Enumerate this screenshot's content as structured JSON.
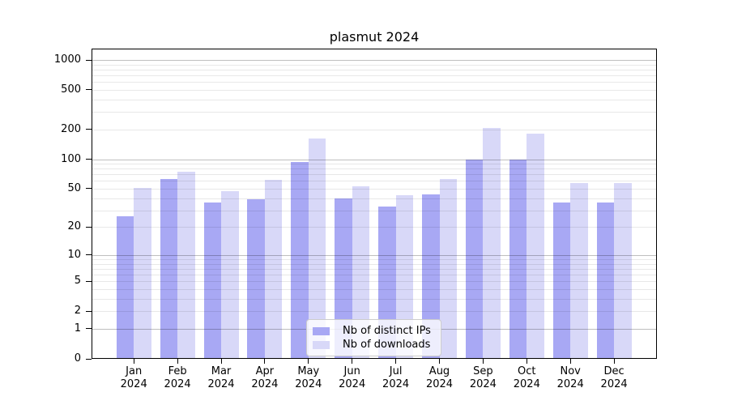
{
  "title": "plasmut 2024",
  "chart_data": {
    "type": "bar",
    "title": "plasmut 2024",
    "categories": [
      "Jan 2024",
      "Feb 2024",
      "Mar 2024",
      "Apr 2024",
      "May 2024",
      "Jun 2024",
      "Jul 2024",
      "Aug 2024",
      "Sep 2024",
      "Oct 2024",
      "Nov 2024",
      "Dec 2024"
    ],
    "series": [
      {
        "name": "Nb of distinct IPs",
        "color": "#a8a8f4",
        "values": [
          26,
          63,
          36,
          39,
          93,
          40,
          33,
          44,
          100,
          99,
          36,
          36
        ]
      },
      {
        "name": "Nb of downloads",
        "color": "#d8d8f8",
        "values": [
          51,
          74,
          47,
          62,
          163,
          53,
          43,
          63,
          206,
          181,
          57,
          57
        ]
      }
    ],
    "yscale": "log1p",
    "yticks": [
      0,
      1,
      2,
      5,
      10,
      20,
      50,
      100,
      200,
      500,
      1000
    ],
    "ylim": [
      0,
      1300
    ],
    "xlabel": "",
    "ylabel": "",
    "grid": "horizontal, minor log lines, majors at powers of 10",
    "legend_position": "lower center"
  },
  "legend": {
    "items": [
      {
        "label": "Nb of distinct IPs",
        "color": "#a8a8f4"
      },
      {
        "label": "Nb of downloads",
        "color": "#d8d8f8"
      }
    ]
  },
  "colors": {
    "bar_dark": "#a8a8f4",
    "bar_light": "#d8d8f8",
    "grid_major": "rgba(0,0,0,0.25)",
    "grid_minor": "rgba(0,0,0,0.09)",
    "axis": "#000000",
    "background": "#ffffff"
  }
}
